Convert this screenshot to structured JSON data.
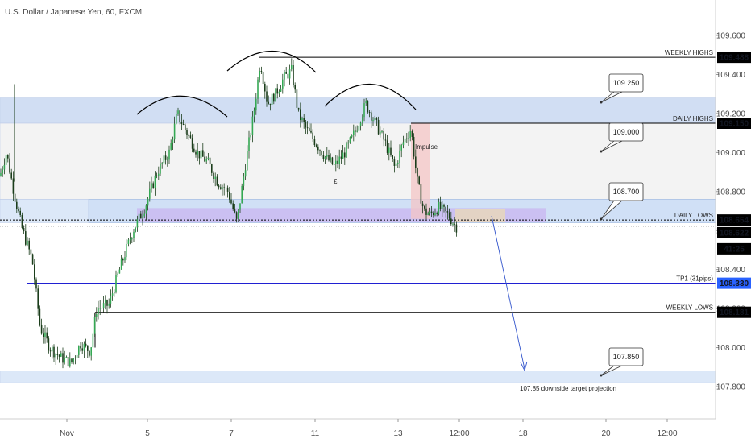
{
  "title": "U.S. Dollar / Japanese Yen, 60, FXCM",
  "chart_data": {
    "type": "candlestick",
    "instrument": "U.S. Dollar / Japanese Yen",
    "timeframe": "60",
    "broker": "FXCM",
    "ylim": [
      107.72,
      109.72
    ],
    "y_ticks": [
      "109.600",
      "109.400",
      "109.200",
      "109.000",
      "108.800",
      "108.600",
      "108.400",
      "108.200",
      "108.000",
      "107.800"
    ],
    "x_ticks": [
      "Nov",
      "5",
      "7",
      "11",
      "13",
      "12:00",
      "18",
      "20",
      "12:00"
    ],
    "x_tick_slots": [
      83,
      183,
      287,
      391,
      494,
      570,
      649,
      752,
      828
    ],
    "price_path": [
      [
        0,
        108.88
      ],
      [
        8,
        109.0
      ],
      [
        18,
        108.78
      ],
      [
        28,
        108.6
      ],
      [
        40,
        108.45
      ],
      [
        50,
        108.1
      ],
      [
        62,
        108.0
      ],
      [
        75,
        107.95
      ],
      [
        88,
        107.92
      ],
      [
        100,
        108.02
      ],
      [
        112,
        107.98
      ],
      [
        120,
        108.2
      ],
      [
        135,
        108.22
      ],
      [
        150,
        108.42
      ],
      [
        165,
        108.6
      ],
      [
        180,
        108.72
      ],
      [
        195,
        108.9
      ],
      [
        210,
        109.0
      ],
      [
        220,
        109.2
      ],
      [
        232,
        109.1
      ],
      [
        245,
        109.0
      ],
      [
        258,
        108.95
      ],
      [
        270,
        108.85
      ],
      [
        283,
        108.8
      ],
      [
        294,
        108.64
      ],
      [
        305,
        108.95
      ],
      [
        315,
        109.2
      ],
      [
        323,
        109.47
      ],
      [
        332,
        109.25
      ],
      [
        342,
        109.3
      ],
      [
        352,
        109.38
      ],
      [
        362,
        109.42
      ],
      [
        370,
        109.2
      ],
      [
        380,
        109.12
      ],
      [
        392,
        109.05
      ],
      [
        403,
        108.98
      ],
      [
        415,
        108.93
      ],
      [
        428,
        109.0
      ],
      [
        440,
        109.1
      ],
      [
        454,
        109.25
      ],
      [
        466,
        109.15
      ],
      [
        478,
        109.05
      ],
      [
        490,
        108.92
      ],
      [
        500,
        109.05
      ],
      [
        510,
        109.12
      ],
      [
        518,
        108.85
      ],
      [
        526,
        108.7
      ],
      [
        534,
        108.68
      ],
      [
        544,
        108.72
      ],
      [
        556,
        108.68
      ],
      [
        566,
        108.62
      ]
    ],
    "levels": [
      {
        "label": "WEEKLY HIGHS",
        "value": 109.488
      },
      {
        "label": "DAILY HIGHS",
        "value": 109.15
      },
      {
        "label": "DAILY LOWS",
        "value": 108.654
      },
      {
        "label": "TP1 (31pips)",
        "value": 108.33
      },
      {
        "label": "WEEKLY LOWS",
        "value": 108.181
      }
    ],
    "zones": [
      {
        "from": 109.15,
        "to": 109.28,
        "color": "#c9d9f2"
      },
      {
        "from": 108.76,
        "to": 109.15,
        "color": "#f2f2f2"
      },
      {
        "from": 108.64,
        "to": 108.76,
        "color": "#d6e4f7"
      },
      {
        "from": 107.82,
        "to": 107.88,
        "color": "#d6e4f7"
      }
    ],
    "callouts": [
      "109.250",
      "109.000",
      "108.700",
      "107.850"
    ],
    "annotations": {
      "impulse": "Impulse",
      "pound": "£",
      "projection": "107.85 downside target projection"
    },
    "price_labels": [
      {
        "value": "109.488",
        "bg": "#000000",
        "fg": "#ffffff"
      },
      {
        "value": "109.150",
        "bg": "#000000",
        "fg": "#ffffff"
      },
      {
        "value": "108.654",
        "bg": "#000000",
        "fg": "#ffffff"
      },
      {
        "value": "108.622",
        "bg": "#000000",
        "fg": "#ffffff"
      },
      {
        "value": "41:25",
        "bg": "#000000",
        "fg": "#ffffff"
      },
      {
        "value": "108.330",
        "bg": "#2962ff",
        "fg": "#ffffff"
      },
      {
        "value": "108.181",
        "bg": "#000000",
        "fg": "#ffffff"
      }
    ],
    "colors": {
      "candle_up": "#26a69a",
      "candle_dark": "#1b3d1b",
      "candle_up_fill": "#34a853",
      "arc": "#000000",
      "tp_line": "#0000cc",
      "arrow": "#3355cc",
      "purple_zone": "#c9b6f0"
    },
    "grid": false,
    "legend": "none"
  }
}
